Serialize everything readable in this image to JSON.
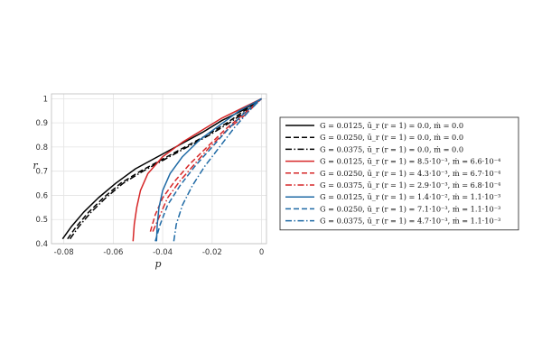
{
  "chart_data": {
    "type": "line",
    "xlabel": "p",
    "ylabel": "r",
    "xlim": [
      -0.085,
      0.002
    ],
    "ylim": [
      0.4,
      1.02
    ],
    "xticks": [
      -0.08,
      -0.06,
      -0.04,
      -0.02,
      0
    ],
    "xtick_labels": [
      "-0.08",
      "-0.06",
      "-0.04",
      "-0.02",
      "0"
    ],
    "yticks": [
      0.4,
      0.5,
      0.6,
      0.7,
      0.8,
      0.9,
      1
    ],
    "ytick_labels": [
      "0.4",
      "0.5",
      "0.6",
      "0.7",
      "0.8",
      "0.9",
      "1"
    ],
    "grid": true,
    "legend_position": "right",
    "series": [
      {
        "name": "G = 0.0125, ū_r (r = 1) = 0.0,   ṁ = 0.0",
        "color": "#000000",
        "dash": "solid",
        "x": [
          -0.0805,
          -0.077,
          -0.072,
          -0.066,
          -0.059,
          -0.051,
          -0.042,
          -0.033,
          -0.024,
          -0.016,
          -0.008,
          0.0
        ],
        "y": [
          0.42,
          0.47,
          0.53,
          0.59,
          0.65,
          0.71,
          0.76,
          0.81,
          0.86,
          0.91,
          0.95,
          1.0
        ]
      },
      {
        "name": "G = 0.0250, ū_r (r = 1) = 0.0,   ṁ = 0.0",
        "color": "#000000",
        "dash": "dashed",
        "x": [
          -0.0785,
          -0.075,
          -0.07,
          -0.064,
          -0.057,
          -0.049,
          -0.04,
          -0.031,
          -0.022,
          -0.014,
          -0.007,
          0.0
        ],
        "y": [
          0.42,
          0.47,
          0.53,
          0.59,
          0.65,
          0.7,
          0.75,
          0.8,
          0.85,
          0.9,
          0.95,
          1.0
        ]
      },
      {
        "name": "G = 0.0375, ū_r (r = 1) = 0.0,   ṁ = 0.0",
        "color": "#000000",
        "dash": "dashdot",
        "x": [
          -0.0775,
          -0.074,
          -0.069,
          -0.063,
          -0.056,
          -0.048,
          -0.039,
          -0.03,
          -0.021,
          -0.013,
          -0.006,
          0.0
        ],
        "y": [
          0.42,
          0.47,
          0.53,
          0.59,
          0.65,
          0.7,
          0.75,
          0.8,
          0.85,
          0.9,
          0.95,
          1.0
        ]
      },
      {
        "name": "G = 0.0125, ū_r (r = 1) = 8.5·10⁻³, ṁ = 6.6·10⁻⁴",
        "color": "#d62728",
        "dash": "solid",
        "x": [
          -0.052,
          -0.0515,
          -0.0505,
          -0.049,
          -0.046,
          -0.04,
          -0.032,
          -0.024,
          -0.016,
          -0.008,
          0.0
        ],
        "y": [
          0.41,
          0.48,
          0.55,
          0.62,
          0.69,
          0.76,
          0.82,
          0.87,
          0.92,
          0.96,
          1.0
        ]
      },
      {
        "name": "G = 0.0250, ū_r (r = 1) = 4.3·10⁻³, ṁ = 6.7·10⁻⁴",
        "color": "#d62728",
        "dash": "dashed",
        "x": [
          -0.045,
          -0.043,
          -0.04,
          -0.035,
          -0.029,
          -0.022,
          -0.015,
          -0.008,
          0.0
        ],
        "y": [
          0.45,
          0.52,
          0.59,
          0.66,
          0.73,
          0.8,
          0.87,
          0.93,
          1.0
        ]
      },
      {
        "name": "G = 0.0375, ū_r (r = 1) = 2.9·10⁻³, ṁ = 6.8·10⁻⁴",
        "color": "#d62728",
        "dash": "dashdot",
        "x": [
          -0.044,
          -0.041,
          -0.038,
          -0.033,
          -0.027,
          -0.021,
          -0.014,
          -0.007,
          0.0
        ],
        "y": [
          0.45,
          0.52,
          0.59,
          0.66,
          0.73,
          0.8,
          0.87,
          0.93,
          1.0
        ]
      },
      {
        "name": "G = 0.0125, ū_r (r = 1) = 1.4·10⁻², ṁ = 1.1·10⁻³",
        "color": "#1f6aa5",
        "dash": "solid",
        "x": [
          -0.0425,
          -0.0422,
          -0.0415,
          -0.04,
          -0.037,
          -0.032,
          -0.025,
          -0.017,
          -0.009,
          0.0
        ],
        "y": [
          0.41,
          0.48,
          0.55,
          0.62,
          0.69,
          0.76,
          0.83,
          0.89,
          0.95,
          1.0
        ]
      },
      {
        "name": "G = 0.0250, ū_r (r = 1) = 7.1·10⁻³, ṁ = 1.1·10⁻³",
        "color": "#1f6aa5",
        "dash": "dashed",
        "x": [
          -0.043,
          -0.041,
          -0.038,
          -0.033,
          -0.027,
          -0.02,
          -0.013,
          -0.006,
          0.0
        ],
        "y": [
          0.41,
          0.48,
          0.56,
          0.64,
          0.72,
          0.8,
          0.88,
          0.95,
          1.0
        ]
      },
      {
        "name": "G = 0.0375, ū_r (r = 1) = 4.7·10⁻³, ṁ = 1.1·10⁻³",
        "color": "#1f6aa5",
        "dash": "dashdot",
        "x": [
          -0.0355,
          -0.0345,
          -0.032,
          -0.028,
          -0.023,
          -0.017,
          -0.011,
          -0.005,
          0.0
        ],
        "y": [
          0.41,
          0.48,
          0.56,
          0.64,
          0.72,
          0.8,
          0.88,
          0.95,
          1.0
        ]
      }
    ]
  }
}
